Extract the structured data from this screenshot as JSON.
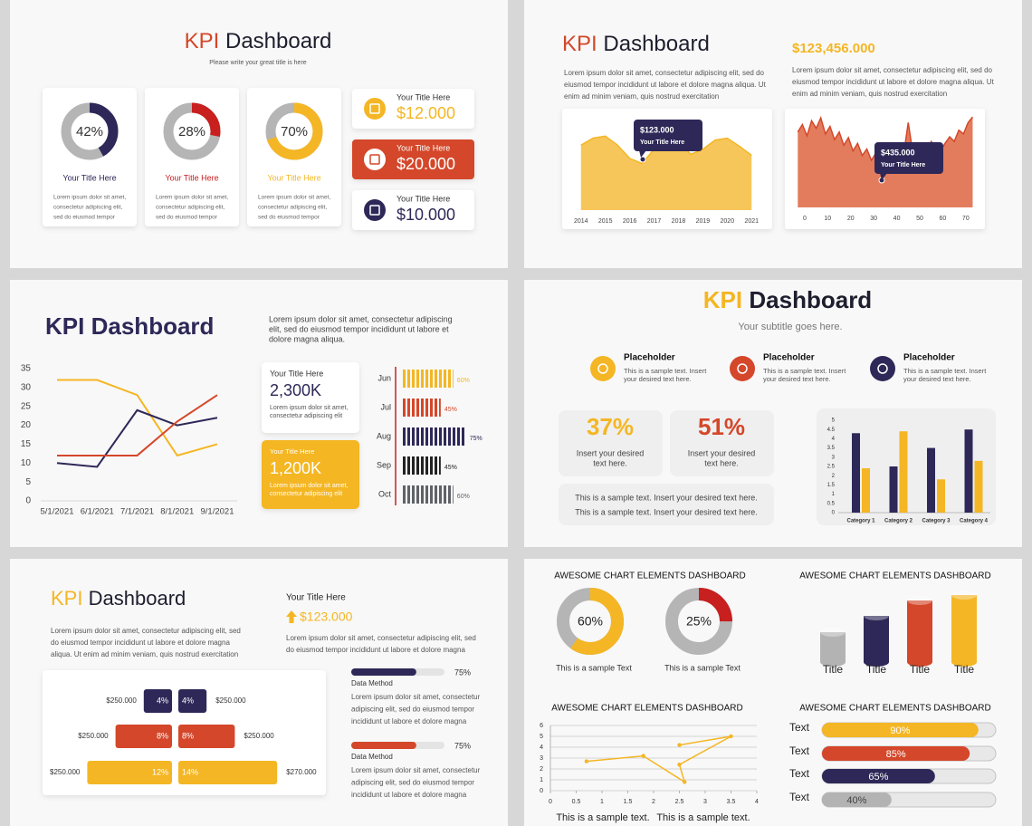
{
  "slides": [
    {
      "title_accent": "KPI",
      "title": "Dashboard",
      "accent_color": "#d4472a",
      "title_color": "#1e1e2e",
      "subtitle": "Please write your great title is here",
      "donut_cards": [
        {
          "value": 42,
          "value_label": "42%",
          "color": "#2e2858",
          "title": "Your Title Here",
          "text": [
            "Lorem ipsum dolor sit amet,",
            "consectetur adipiscing elit,",
            "sed do eiusmod tempor"
          ]
        },
        {
          "value": 28,
          "value_label": "28%",
          "color": "#c81f1f",
          "title": "Your Title Here",
          "text": [
            "Lorem ipsum dolor sit amet,",
            "consectetur adipiscing elit,",
            "sed do eiusmod tempor"
          ]
        },
        {
          "value": 70,
          "value_label": "70%",
          "color": "#f4b624",
          "title": "Your Title Here",
          "text": [
            "Lorem ipsum dolor sit amet,",
            "consectetur adipiscing elit,",
            "sed do eiusmod tempor"
          ]
        }
      ],
      "kpi_tiles": [
        {
          "title": "Your Title Here",
          "value": "$12.000",
          "color": "#f4b624",
          "filled": false
        },
        {
          "title": "Your Title Here",
          "value": "$20.000",
          "color": "#d4472a",
          "filled": true
        },
        {
          "title": "Your Title Here",
          "value": "$10.000",
          "color": "#2e2858",
          "filled": false
        }
      ]
    },
    {
      "title_accent": "KPI",
      "title": "Dashboard",
      "accent_color": "#d4472a",
      "title_color": "#1e1e2e",
      "text": [
        "Lorem ipsum dolor sit amet, consectetur adipiscing elit, sed do",
        "eiusmod tempor incididunt ut labore et dolore magna aliqua. Ut",
        "enim ad minim veniam, quis nostrud exercitation"
      ],
      "amount": "$123,456.000",
      "amount_text": [
        "Lorem ipsum dolor sit amet, consectetur adipiscing elit, sed do",
        "eiusmod tempor incididunt ut labore et dolore magna aliqua. Ut",
        "enim ad minim veniam, quis nostrud exercitation"
      ],
      "charts": [
        {
          "type": "area",
          "x": [
            2014,
            2014.5,
            2015,
            2015.5,
            2016,
            2016.5,
            2017,
            2017.5,
            2018,
            2018.5,
            2019,
            2019.5,
            2020,
            2020.5,
            2021
          ],
          "values": [
            64,
            71,
            73,
            64,
            51,
            46,
            60,
            73,
            69,
            55,
            60,
            69,
            71,
            63,
            54
          ],
          "xlim": [
            2013.6,
            2021.4
          ],
          "xticks": [
            2014,
            2015,
            2016,
            2017,
            2018,
            2019,
            2020,
            2021
          ],
          "ylim": [
            0,
            100
          ],
          "color": "#f7c65a",
          "line_color": "#f4b624",
          "tooltip": {
            "value": "$123.000",
            "label": "Your Title Here"
          }
        },
        {
          "type": "area",
          "x": [
            -3,
            -1,
            1,
            3,
            5,
            7,
            9,
            11,
            13,
            15,
            17,
            19,
            21,
            23,
            25,
            27,
            29,
            31,
            33,
            35,
            37,
            39,
            41,
            43,
            45,
            47,
            49,
            51,
            53,
            55,
            57,
            59,
            61,
            63,
            65,
            67,
            69,
            71,
            73
          ],
          "values": [
            80,
            88,
            76,
            92,
            84,
            95,
            78,
            86,
            72,
            80,
            66,
            74,
            60,
            68,
            55,
            62,
            50,
            58,
            48,
            54,
            46,
            52,
            49,
            56,
            90,
            58,
            54,
            62,
            58,
            70,
            64,
            60,
            68,
            75,
            70,
            82,
            78,
            90,
            96
          ],
          "xlim": [
            -3.5,
            74
          ],
          "xticks": [
            0,
            10,
            20,
            30,
            40,
            50,
            60,
            70
          ],
          "ylim": [
            0,
            100
          ],
          "color": "#e37c5c",
          "line_color": "#d4472a",
          "tooltip": {
            "value": "$435.000",
            "label": "Your Title Here"
          }
        }
      ]
    },
    {
      "title_accent": "KPI",
      "title": "Dashboard",
      "accent_color": "#2e2858",
      "title_color": "#2e2858",
      "text": [
        "Lorem ipsum dolor sit amet, consectetur adipiscing",
        "elit, sed do eiusmod tempor incididunt ut labore et",
        "dolore magna aliqua."
      ],
      "line_chart": {
        "type": "line",
        "categories": [
          "5/1/2021",
          "6/1/2021",
          "7/1/2021",
          "8/1/2021",
          "9/1/2021"
        ],
        "series": [
          {
            "color": "#f4b624",
            "values": [
              32,
              32,
              28,
              12,
              15
            ]
          },
          {
            "color": "#2e2858",
            "values": [
              10,
              9,
              24,
              20,
              22
            ]
          },
          {
            "color": "#d4472a",
            "values": [
              12,
              12,
              12,
              21,
              28
            ]
          }
        ],
        "ylim": [
          0,
          35
        ],
        "yticks": [
          0,
          5,
          10,
          15,
          20,
          25,
          30,
          35
        ]
      },
      "tiles": [
        {
          "title": "Your Title Here",
          "value": "2,300K",
          "text": [
            "Lorem ipsum dolor sit amet,",
            "consectetur adipiscing elit"
          ],
          "color": "#2e2858",
          "filled": false
        },
        {
          "title": "Your Title Here",
          "value": "1,200K",
          "text": [
            "Lorem ipsum dolor sit amet,",
            "consectetur adipiscing elit"
          ],
          "color": "#f4b624",
          "filled": true
        }
      ],
      "stripe_bars": {
        "type": "bar",
        "categories": [
          "Jun",
          "Jul",
          "Aug",
          "Sep",
          "Oct"
        ],
        "values": [
          60,
          45,
          75,
          45,
          60
        ],
        "value_labels": [
          "60%",
          "45%",
          "75%",
          "45%",
          "60%"
        ],
        "xlim": [
          0,
          100
        ],
        "colors": [
          "#f4b624",
          "#d4472a",
          "#2e2858",
          "#222222",
          "#5f6368"
        ]
      }
    },
    {
      "title_accent": "KPI",
      "title": "Dashboard",
      "accent_color": "#f4b624",
      "title_color": "#1e1e2e",
      "subtitle": "Your subtitle goes here.",
      "placeholders": [
        {
          "title": "Placeholder",
          "text": [
            "This is a sample text. Insert",
            "your desired text here."
          ],
          "color": "#f4b624"
        },
        {
          "title": "Placeholder",
          "text": [
            "This is a sample text. Insert",
            "your desired text here."
          ],
          "color": "#d4472a"
        },
        {
          "title": "Placeholder",
          "text": [
            "This is a sample text. Insert",
            "your desired text here."
          ],
          "color": "#2e2858"
        }
      ],
      "stats": [
        {
          "value": "37%",
          "text": [
            "Insert your desired",
            "text here."
          ],
          "color": "#f4b624"
        },
        {
          "value": "51%",
          "text": [
            "Insert your desired",
            "text here."
          ],
          "color": "#d4472a"
        }
      ],
      "note": [
        "This is a sample text. Insert your desired text here.",
        "This is a sample text. Insert your desired text here."
      ],
      "bar_chart": {
        "type": "bar",
        "categories": [
          "Category 1",
          "Category 2",
          "Category 3",
          "Category 4"
        ],
        "series": [
          {
            "color": "#2e2858",
            "values": [
              4.3,
              2.5,
              3.5,
              4.5
            ]
          },
          {
            "color": "#f4b624",
            "values": [
              2.4,
              4.4,
              1.8,
              2.8
            ]
          }
        ],
        "ylim": [
          0,
          5
        ],
        "yticks": [
          0,
          0.5,
          1,
          1.5,
          2,
          2.5,
          3,
          3.5,
          4,
          4.5,
          5
        ]
      }
    },
    {
      "title_accent": "KPI",
      "title": "Dashboard",
      "accent_color": "#f4b624",
      "title_color": "#1e1e2e",
      "text": [
        "Lorem ipsum dolor sit amet, consectetur adipiscing elit, sed",
        "do eiusmod tempor incididunt ut labore et dolore magna",
        "aliqua. Ut enim ad minim veniam, quis nostrud exercitation"
      ],
      "kpi_title": "Your Title Here",
      "kpi_value": "$123.000",
      "kpi_text": [
        "Lorem ipsum dolor sit amet, consectetur adipiscing elit, sed",
        "do eiusmod tempor incididunt ut labore et dolore magna"
      ],
      "butterfly": {
        "colors": [
          "#2e2858",
          "#d4472a",
          "#f4b624"
        ],
        "left_amounts": [
          "$250.000",
          "$250.000",
          "$250.000"
        ],
        "left_values": [
          4,
          8,
          12
        ],
        "left_value_labels": [
          "4%",
          "8%",
          "12%"
        ],
        "right_values": [
          4,
          8,
          14
        ],
        "right_value_labels": [
          "4%",
          "8%",
          "14%"
        ],
        "right_amounts": [
          "$250.000",
          "$250.000",
          "$270.000"
        ]
      },
      "progress": [
        {
          "value": 75,
          "value_label": "75%",
          "label": "Data Method",
          "color": "#2e2858",
          "text": [
            "Lorem ipsum dolor sit amet, consectetur",
            "adipiscing elit, sed do eiusmod tempor",
            "incididunt ut labore et dolore magna"
          ]
        },
        {
          "value": 75,
          "value_label": "75%",
          "label": "Data Method",
          "color": "#d4472a",
          "text": [
            "Lorem ipsum dolor sit amet, consectetur",
            "adipiscing elit, sed do eiusmod tempor",
            "incididunt ut labore et dolore magna"
          ]
        }
      ]
    },
    {
      "headings": [
        "AWESOME CHART ELEMENTS DASHBOARD",
        "AWESOME CHART ELEMENTS DASHBOARD",
        "AWESOME CHART ELEMENTS DASHBOARD",
        "AWESOME CHART ELEMENTS DASHBOARD"
      ],
      "donuts": [
        {
          "value": 60,
          "value_label": "60%",
          "color": "#f4b624",
          "caption": "This is a sample Text"
        },
        {
          "value": 25,
          "value_label": "25%",
          "color": "#c81f1f",
          "caption": "This is a sample Text"
        }
      ],
      "cylinders": {
        "type": "bar",
        "labels": [
          "Title",
          "Title",
          "Title",
          "Title"
        ],
        "values": [
          33,
          51,
          68,
          74
        ],
        "ylim": [
          0,
          100
        ],
        "colors": [
          "#b3b3b3",
          "#2e2858",
          "#d4472a",
          "#f4b624"
        ]
      },
      "scatter": {
        "type": "line",
        "x": [
          0.7,
          1.8,
          2.6,
          2.5,
          3.5,
          2.5
        ],
        "y": [
          2.7,
          3.2,
          0.8,
          2.4,
          5,
          4.2
        ],
        "xlim": [
          0,
          4
        ],
        "ylim": [
          0,
          6
        ],
        "xticks": [
          0,
          0.5,
          1,
          1.5,
          2,
          2.5,
          3,
          3.5,
          4
        ],
        "yticks": [
          0,
          1,
          2,
          3,
          4,
          5,
          6
        ],
        "grid": true,
        "color": "#f4b624"
      },
      "captions": [
        "This is a sample text.",
        "This is a sample text."
      ],
      "progress": {
        "labels": [
          "Text",
          "Text",
          "Text",
          "Text"
        ],
        "values": [
          90,
          85,
          65,
          40
        ],
        "value_labels": [
          "90%",
          "85%",
          "65%",
          "40%"
        ],
        "colors": [
          "#f4b624",
          "#d4472a",
          "#2e2858",
          "#b3b3b3"
        ]
      }
    }
  ]
}
